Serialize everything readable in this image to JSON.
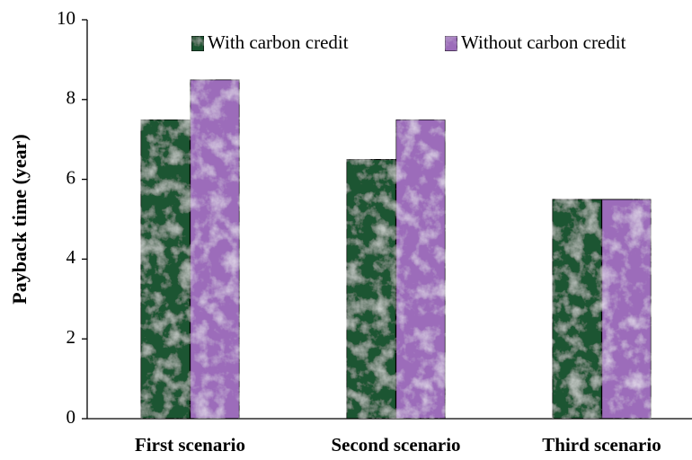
{
  "chart_data": {
    "type": "bar",
    "y_label": "Payback time (year)",
    "categories": [
      "First scenario",
      "Second scenario",
      "Third scenario"
    ],
    "series": [
      {
        "name": "With carbon credit",
        "color": "#1e5533",
        "values": [
          7.5,
          6.5,
          5.5
        ]
      },
      {
        "name": "Without carbon credit",
        "color": "#9c6cba",
        "values": [
          8.5,
          7.5,
          5.5
        ]
      }
    ],
    "ylim": [
      0,
      10
    ],
    "yticks": [
      0,
      2,
      4,
      6,
      8,
      10
    ],
    "grid": false,
    "legend": "top"
  }
}
